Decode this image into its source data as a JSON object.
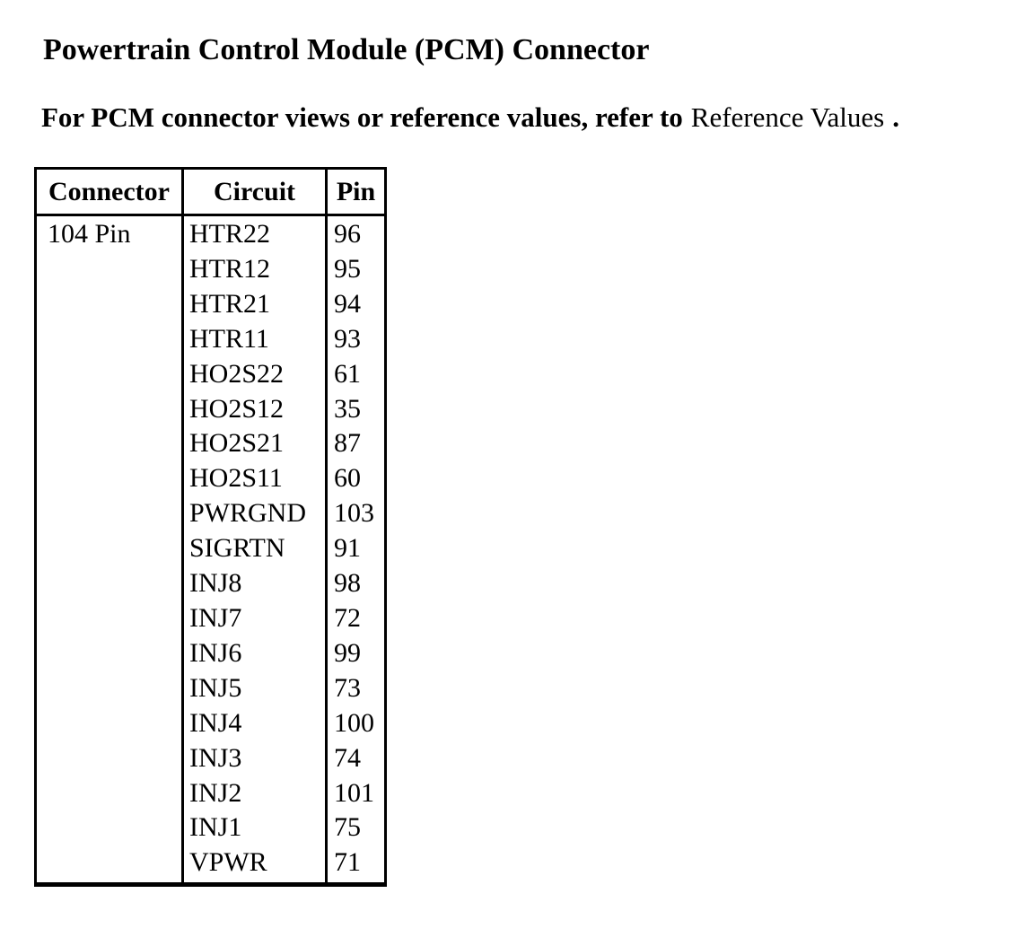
{
  "page": {
    "title": "Powertrain Control Module (PCM) Connector"
  },
  "intro": {
    "lead_bold": "For PCM connector views or reference values, refer to",
    "link_label": "Reference Values",
    "terminator": "."
  },
  "table": {
    "headers": [
      "Connector",
      "Circuit",
      "Pin"
    ],
    "connector_label": "104 Pin",
    "rows": [
      {
        "circuit": "HTR22",
        "pin": "96"
      },
      {
        "circuit": "HTR12",
        "pin": "95"
      },
      {
        "circuit": "HTR21",
        "pin": "94"
      },
      {
        "circuit": "HTR11",
        "pin": "93"
      },
      {
        "circuit": "HO2S22",
        "pin": "61"
      },
      {
        "circuit": "HO2S12",
        "pin": "35"
      },
      {
        "circuit": "HO2S21",
        "pin": "87"
      },
      {
        "circuit": "HO2S11",
        "pin": "60"
      },
      {
        "circuit": "PWRGND",
        "pin": "103"
      },
      {
        "circuit": "SIGRTN",
        "pin": "91"
      },
      {
        "circuit": "INJ8",
        "pin": "98"
      },
      {
        "circuit": "INJ7",
        "pin": "72"
      },
      {
        "circuit": "INJ6",
        "pin": "99"
      },
      {
        "circuit": "INJ5",
        "pin": "73"
      },
      {
        "circuit": "INJ4",
        "pin": "100"
      },
      {
        "circuit": "INJ3",
        "pin": "74"
      },
      {
        "circuit": "INJ2",
        "pin": "101"
      },
      {
        "circuit": "INJ1",
        "pin": "75"
      },
      {
        "circuit": "VPWR",
        "pin": "71"
      }
    ]
  },
  "colors": {
    "text": "#000000",
    "background": "#ffffff",
    "table_border": "#000000"
  }
}
